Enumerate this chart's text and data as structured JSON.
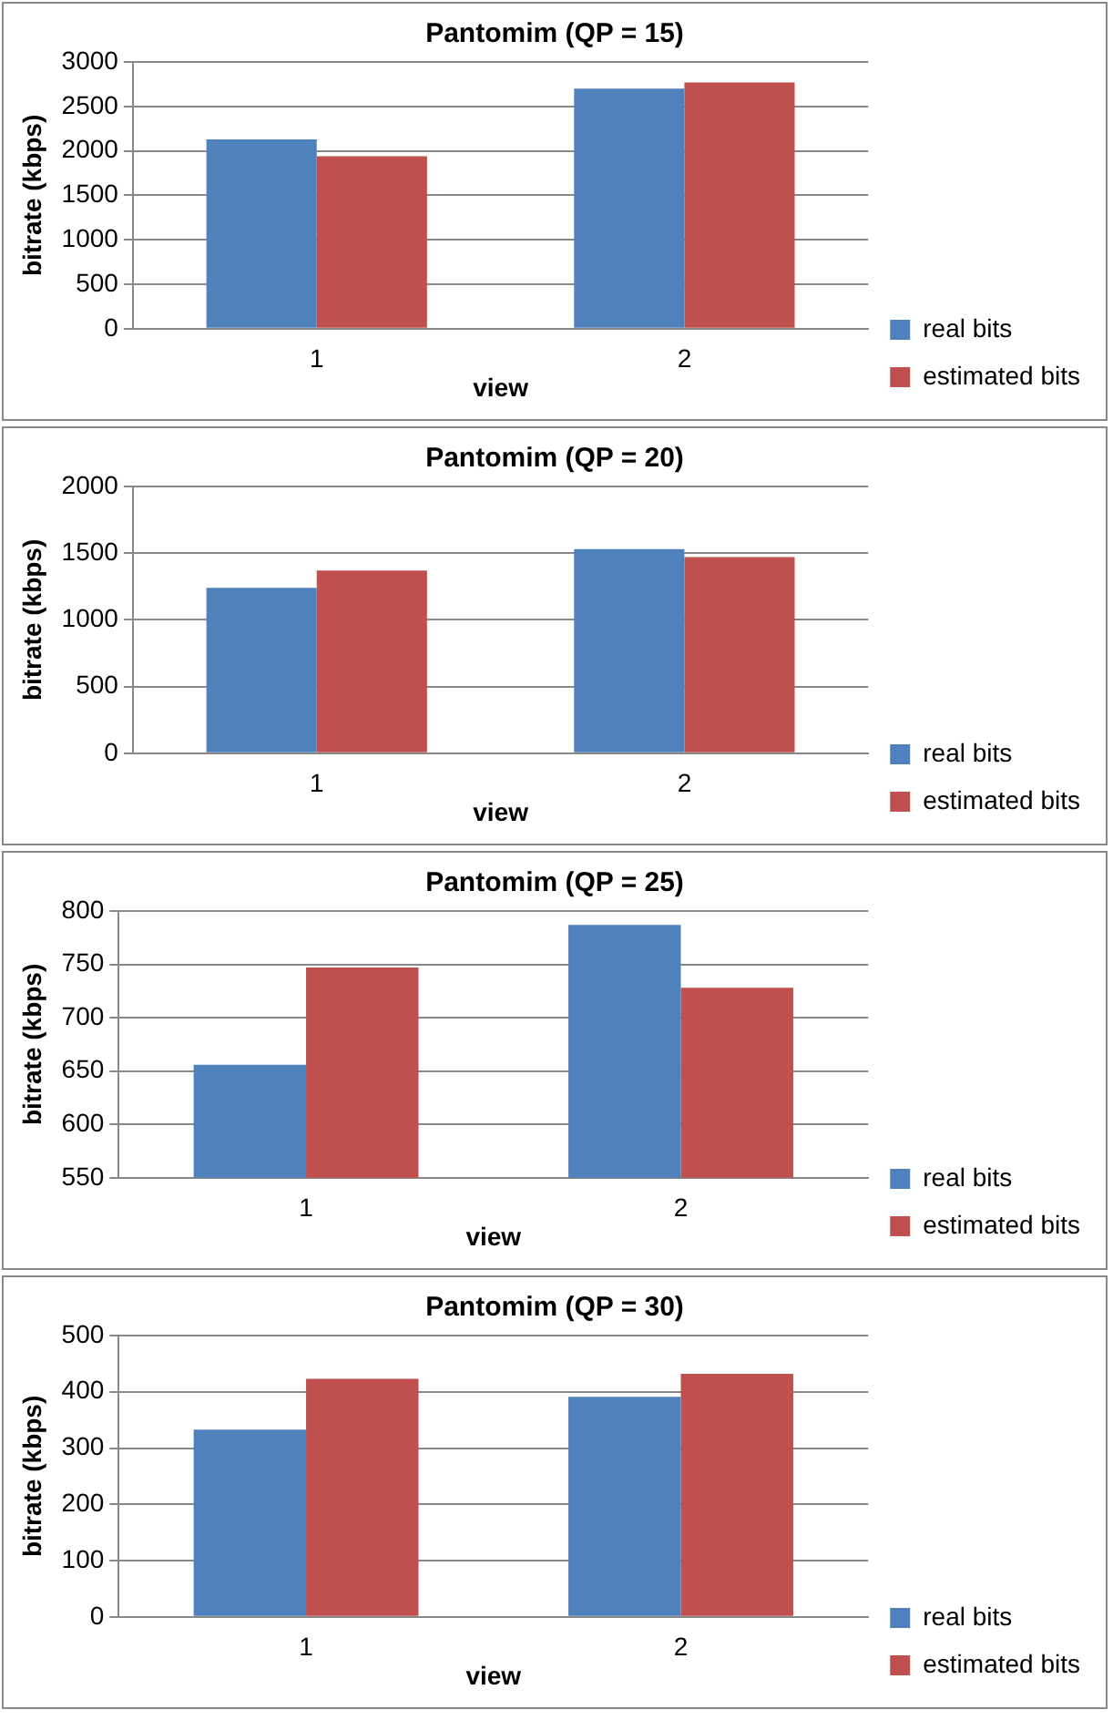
{
  "chart_data": [
    {
      "type": "bar",
      "title": "Pantomim (QP = 15)",
      "xlabel": "view",
      "ylabel": "bitrate (kbps)",
      "categories": [
        "1",
        "2"
      ],
      "series": [
        {
          "name": "real bits",
          "color": "#4f81bd",
          "values": [
            2130,
            2700
          ]
        },
        {
          "name": "estimated bits",
          "color": "#c0504d",
          "values": [
            1940,
            2770
          ]
        }
      ],
      "ylim": [
        0,
        3000
      ],
      "yticks": [
        0,
        500,
        1000,
        1500,
        2000,
        2500,
        3000
      ],
      "grid": "y",
      "legend": "bottom right"
    },
    {
      "type": "bar",
      "title": "Pantomim (QP = 20)",
      "xlabel": "view",
      "ylabel": "bitrate (kbps)",
      "categories": [
        "1",
        "2"
      ],
      "series": [
        {
          "name": "real bits",
          "color": "#4f81bd",
          "values": [
            1240,
            1530
          ]
        },
        {
          "name": "estimated bits",
          "color": "#c0504d",
          "values": [
            1370,
            1470
          ]
        }
      ],
      "ylim": [
        0,
        2000
      ],
      "yticks": [
        0,
        500,
        1000,
        1500,
        2000
      ],
      "grid": "y",
      "legend": "bottom right"
    },
    {
      "type": "bar",
      "title": "Pantomim (QP = 25)",
      "xlabel": "view",
      "ylabel": "bitrate (kbps)",
      "categories": [
        "1",
        "2"
      ],
      "series": [
        {
          "name": "real bits",
          "color": "#4f81bd",
          "values": [
            656,
            787
          ]
        },
        {
          "name": "estimated bits",
          "color": "#c0504d",
          "values": [
            747,
            728
          ]
        }
      ],
      "ylim": [
        550,
        800
      ],
      "yticks": [
        550,
        600,
        650,
        700,
        750,
        800
      ],
      "grid": "y",
      "legend": "bottom right"
    },
    {
      "type": "bar",
      "title": "Pantomim (QP = 30)",
      "xlabel": "view",
      "ylabel": "bitrate (kbps)",
      "categories": [
        "1",
        "2"
      ],
      "series": [
        {
          "name": "real bits",
          "color": "#4f81bd",
          "values": [
            333,
            391
          ]
        },
        {
          "name": "estimated bits",
          "color": "#c0504d",
          "values": [
            423,
            432
          ]
        }
      ],
      "ylim": [
        0,
        500
      ],
      "yticks": [
        0,
        100,
        200,
        300,
        400,
        500
      ],
      "grid": "y",
      "legend": "bottom right"
    }
  ]
}
